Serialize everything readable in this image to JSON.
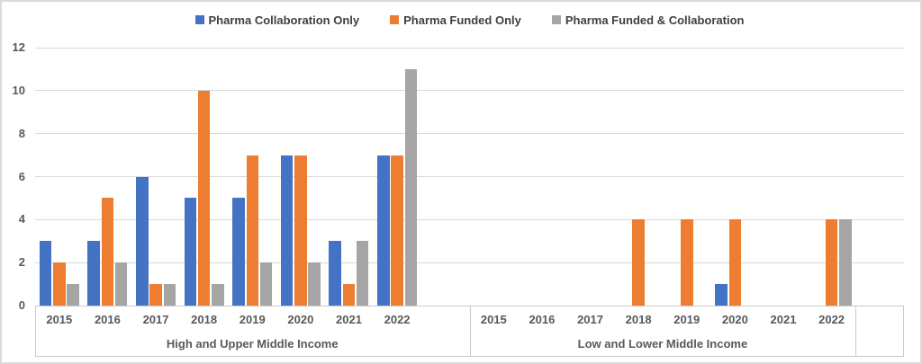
{
  "chart_data": {
    "type": "bar",
    "legend_position": "top",
    "grid": true,
    "ylim": [
      0,
      12
    ],
    "yticks": [
      0,
      2,
      4,
      6,
      8,
      10,
      12
    ],
    "groups": [
      {
        "label": "High and Upper Middle Income",
        "categories": [
          "2015",
          "2016",
          "2017",
          "2018",
          "2019",
          "2020",
          "2021",
          "2022"
        ]
      },
      {
        "label": "Low and Lower Middle Income",
        "categories": [
          "2015",
          "2016",
          "2017",
          "2018",
          "2019",
          "2020",
          "2021",
          "2022"
        ]
      }
    ],
    "series": [
      {
        "name": "Pharma Collaboration Only",
        "color": "#4472C4",
        "values": [
          [
            3,
            3,
            6,
            5,
            5,
            7,
            3,
            7
          ],
          [
            0,
            0,
            0,
            0,
            0,
            1,
            0,
            0
          ]
        ]
      },
      {
        "name": "Pharma Funded Only",
        "color": "#ED7D31",
        "values": [
          [
            2,
            5,
            1,
            10,
            7,
            7,
            1,
            7
          ],
          [
            0,
            0,
            0,
            4,
            4,
            4,
            0,
            4
          ]
        ]
      },
      {
        "name": "Pharma Funded & Collaboration",
        "color": "#A5A5A5",
        "values": [
          [
            1,
            2,
            1,
            1,
            2,
            2,
            3,
            11
          ],
          [
            0,
            0,
            0,
            0,
            0,
            0,
            0,
            4
          ]
        ]
      }
    ]
  }
}
